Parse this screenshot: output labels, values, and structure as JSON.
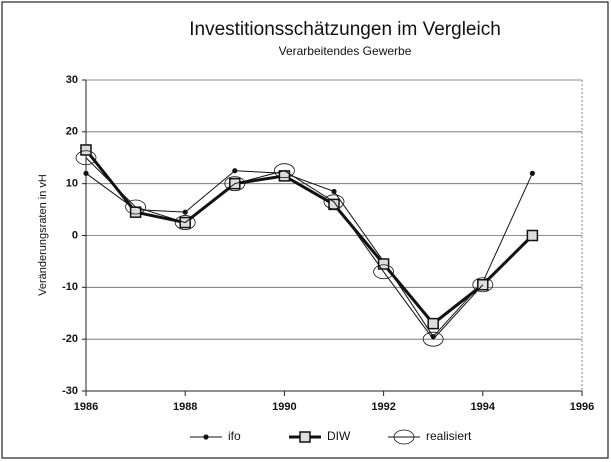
{
  "chart_data": {
    "type": "line",
    "title": "Investitionsschätzungen im Vergleich",
    "subtitle": "Verarbeitendes Gewerbe",
    "y_label": "Veränderungsraten in vH",
    "x": [
      1986,
      1987,
      1988,
      1989,
      1990,
      1991,
      1992,
      1993,
      1994,
      1995
    ],
    "series": [
      {
        "name": "ifo",
        "color": "#111111",
        "marker": "dot",
        "values": [
          12,
          5,
          4.5,
          12.5,
          12,
          8.5,
          -5,
          -19.5,
          -9,
          12
        ]
      },
      {
        "name": "DIW",
        "color": "#111111",
        "marker": "square",
        "values": [
          16.5,
          4.5,
          2.5,
          10,
          11.5,
          6,
          -5.5,
          -17,
          -9.5,
          0
        ]
      },
      {
        "name": "realisiert",
        "color": "#111111",
        "marker": "circle",
        "values": [
          15,
          5.5,
          2.5,
          10,
          12.5,
          6.5,
          -7,
          -20,
          -9.5,
          null
        ]
      }
    ],
    "xlim": [
      1986,
      1996
    ],
    "xticks": [
      1986,
      1988,
      1990,
      1992,
      1994,
      1996
    ],
    "ylim": [
      -30,
      30
    ],
    "yticks": [
      -30,
      -20,
      -10,
      0,
      10,
      20,
      30
    ],
    "grid": true,
    "legend": "bottom"
  }
}
